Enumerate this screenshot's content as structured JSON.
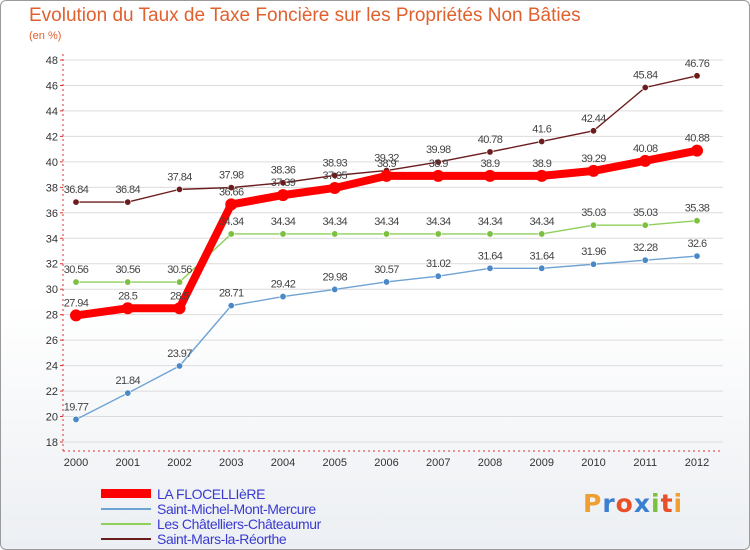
{
  "header": {
    "title": "Evolution du Taux de Taxe Foncière sur les Propriétés Non Bâties",
    "subtitle": "(en %)"
  },
  "logo": {
    "letters": [
      "P",
      "r",
      "o",
      "x",
      "i",
      "t",
      "i"
    ],
    "colors": [
      "#f0a030",
      "#3a7fd0",
      "#e8502a",
      "#3a7fd0",
      "#7cc040",
      "#e8502a",
      "#f0a030"
    ]
  },
  "chart_data": {
    "type": "line",
    "title": "Evolution du Taux de Taxe Foncière sur les Propriétés Non Bâties",
    "ylabel": "(en %)",
    "xlabel": "",
    "ylim": [
      18,
      48
    ],
    "ytick_step": 2,
    "grid": "horizontal",
    "legend_position": "bottom-left",
    "x": [
      "2000",
      "2001",
      "2002",
      "2003",
      "2004",
      "2005",
      "2006",
      "2007",
      "2008",
      "2009",
      "2010",
      "2011",
      "2012"
    ],
    "series": [
      {
        "name": "Saint-Mars-la-Réorthe",
        "color": "#6b1c1c",
        "marker_color": "#6b1c1c",
        "values": [
          36.84,
          36.84,
          37.84,
          37.98,
          38.36,
          38.93,
          39.32,
          39.98,
          40.78,
          41.6,
          42.44,
          45.84,
          46.76
        ],
        "labels": [
          "36.84",
          "36.84",
          "37.84",
          "37.98",
          "38.36",
          "38.93",
          "39.32",
          "39.98",
          "40.78",
          "41.6",
          "42.44",
          "45.84",
          "46.76"
        ]
      },
      {
        "name": "Les Châtelliers-Châteaumur",
        "color": "#8ed05a",
        "marker_color": "#7cc040",
        "values": [
          30.56,
          30.56,
          30.56,
          34.34,
          34.34,
          34.34,
          34.34,
          34.34,
          34.34,
          34.34,
          35.03,
          35.03,
          35.38
        ],
        "labels": [
          "30.56",
          "30.56",
          "30.56",
          "34.34",
          "34.34",
          "34.34",
          "34.34",
          "34.34",
          "34.34",
          "34.34",
          "35.03",
          "35.03",
          "35.38"
        ]
      },
      {
        "name": "Saint-Michel-Mont-Mercure",
        "color": "#6fa3d3",
        "marker_color": "#4a88c8",
        "values": [
          19.77,
          21.84,
          23.97,
          28.71,
          29.42,
          29.98,
          30.57,
          31.02,
          31.64,
          31.64,
          31.96,
          32.28,
          32.6
        ],
        "labels": [
          "19.77",
          "21.84",
          "23.97",
          "28.71",
          "29.42",
          "29.98",
          "30.57",
          "31.02",
          "31.64",
          "31.64",
          "31.96",
          "32.28",
          "32.6"
        ]
      },
      {
        "name": "LA FLOCELLIèRE",
        "color": "#ff0000",
        "marker_color": "#ff0000",
        "highlight": true,
        "values": [
          27.94,
          28.5,
          28.5,
          36.66,
          37.39,
          37.95,
          38.9,
          38.9,
          38.9,
          38.9,
          39.29,
          40.08,
          40.88
        ],
        "labels": [
          "27.94",
          "28.5",
          "28.5",
          "36.66",
          "37.39",
          "37.95",
          "38.9",
          "38.9",
          "38.9",
          "38.9",
          "39.29",
          "40.08",
          "40.88"
        ]
      }
    ],
    "legend_order": [
      "LA FLOCELLIèRE",
      "Saint-Michel-Mont-Mercure",
      "Les Châtelliers-Châteaumur",
      "Saint-Mars-la-Réorthe"
    ]
  }
}
